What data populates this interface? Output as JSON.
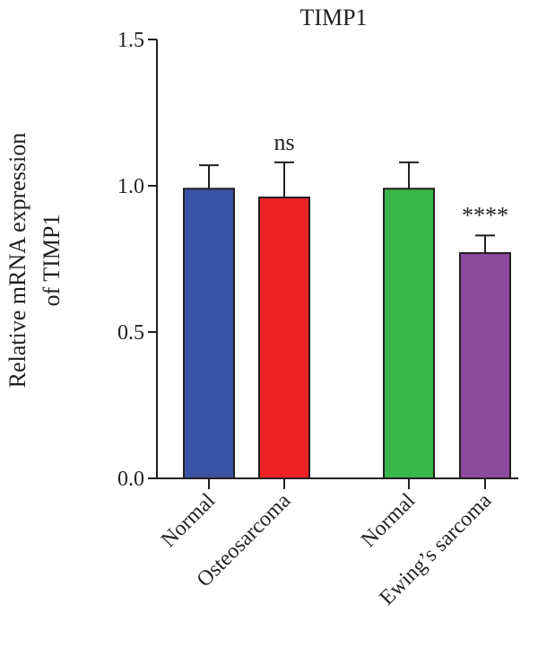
{
  "chart_data": {
    "type": "bar",
    "title": "TIMP1",
    "ylabel_lines": [
      "Relative mRNA expression",
      "of TIMP1"
    ],
    "xlabel": "",
    "ylim": [
      0,
      1.5
    ],
    "yticks": [
      0.0,
      0.5,
      1.0,
      1.5
    ],
    "ytick_labels": [
      "0.0",
      "0.5",
      "1.0",
      "1.5"
    ],
    "categories": [
      "Normal",
      "Osteosarcoma",
      "Normal",
      "Ewing’s sarcoma"
    ],
    "values": [
      0.99,
      0.96,
      0.99,
      0.77
    ],
    "error_upper": [
      0.08,
      0.12,
      0.09,
      0.06
    ],
    "colors": [
      "#3a53a4",
      "#ed2224",
      "#39b54a",
      "#8b4a9c"
    ],
    "annotations": [
      "",
      "ns",
      "",
      "****"
    ],
    "grid": false,
    "legend": "none"
  }
}
